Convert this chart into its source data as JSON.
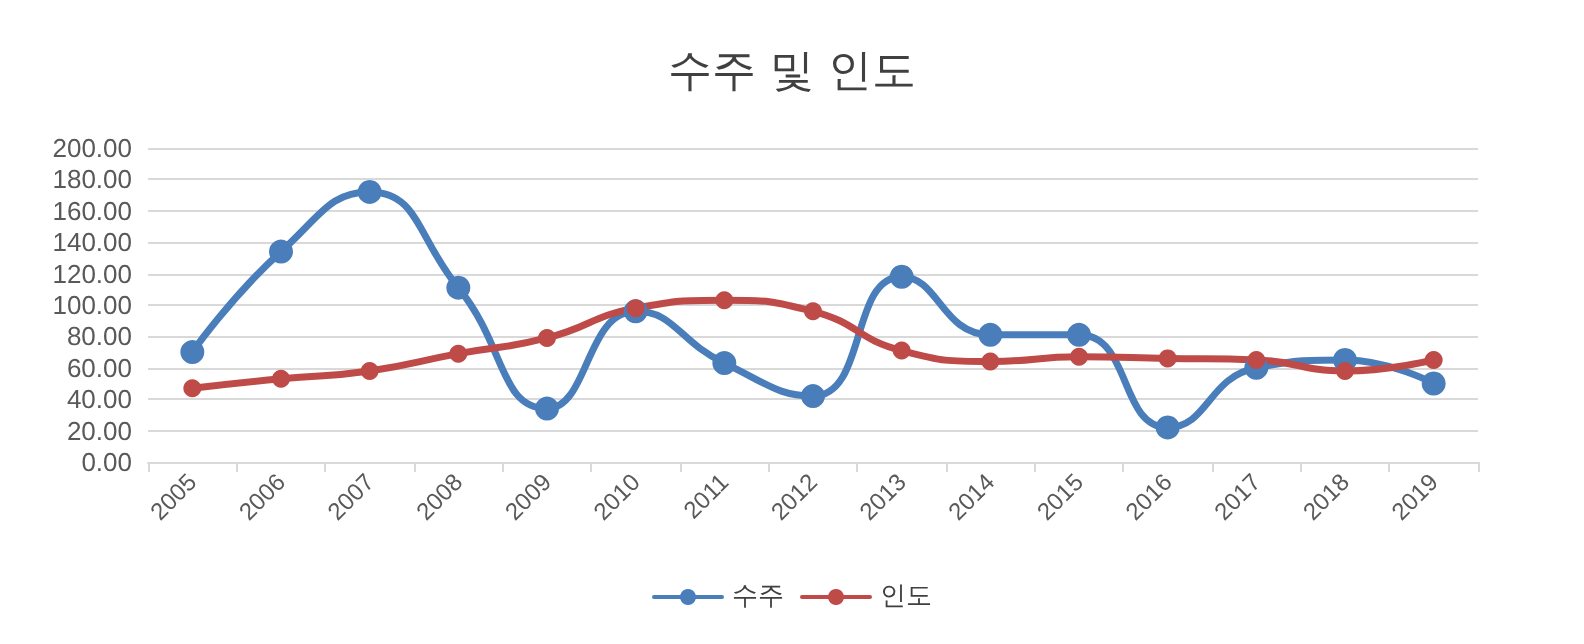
{
  "chart_data": {
    "type": "line",
    "title": "수주 및 인도",
    "categories": [
      "2005",
      "2006",
      "2007",
      "2008",
      "2009",
      "2010",
      "2011",
      "2012",
      "2013",
      "2014",
      "2015",
      "2016",
      "2017",
      "2018",
      "2019"
    ],
    "series": [
      {
        "name": "수주",
        "color": "#4a7ebb",
        "values": [
          70,
          134,
          172,
          111,
          34,
          96,
          63,
          42,
          118,
          81,
          81,
          22,
          60,
          65,
          50
        ]
      },
      {
        "name": "인도",
        "color": "#be4b48",
        "values": [
          47,
          53,
          58,
          69,
          79,
          98,
          103,
          96,
          71,
          64,
          67,
          66,
          65,
          58,
          65
        ]
      }
    ],
    "ylim": [
      0,
      200
    ],
    "yticks": [
      {
        "value": 0,
        "label": "0.00"
      },
      {
        "value": 20,
        "label": "20.00"
      },
      {
        "value": 40,
        "label": "40.00"
      },
      {
        "value": 60,
        "label": "60.00"
      },
      {
        "value": 80,
        "label": "80.00"
      },
      {
        "value": 100,
        "label": "100.00"
      },
      {
        "value": 120,
        "label": "120.00"
      },
      {
        "value": 140,
        "label": "140.00"
      },
      {
        "value": 160,
        "label": "160.00"
      },
      {
        "value": 180,
        "label": "180.00"
      },
      {
        "value": 200,
        "label": "200.00"
      }
    ],
    "grid": "y",
    "legend": "bottom",
    "marker": "circle",
    "line_style": "solid"
  }
}
